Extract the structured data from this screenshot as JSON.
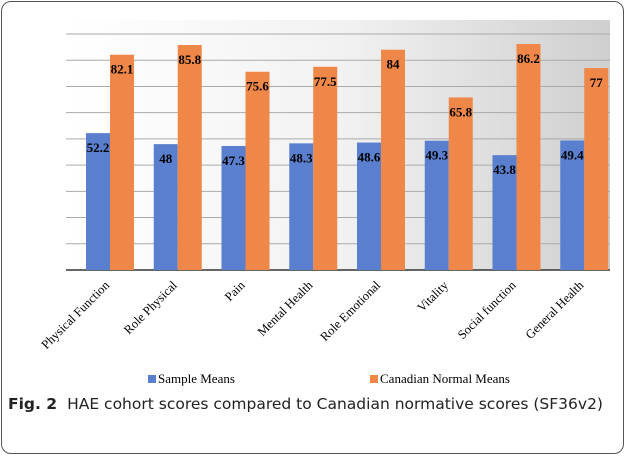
{
  "chart_data": {
    "type": "bar",
    "categories": [
      "Physical Function",
      "Role Physical",
      "Pain",
      "Mental Health",
      "Role Emotional",
      "Vitality",
      "Social function",
      "General Health"
    ],
    "series": [
      {
        "name": "Sample Means",
        "color": "#5b7fcf",
        "values": [
          52.2,
          48,
          47.3,
          48.3,
          48.6,
          49.3,
          43.8,
          49.4
        ]
      },
      {
        "name": "Canadian Normal Means",
        "color": "#ef8748",
        "values": [
          82.1,
          85.8,
          75.6,
          77.5,
          84,
          65.8,
          86.2,
          77
        ]
      }
    ],
    "ylim": [
      0,
      90
    ],
    "yticks": [
      0,
      10,
      20,
      30,
      40,
      50,
      60,
      70,
      80,
      90
    ],
    "grid": true
  },
  "caption": {
    "label": "Fig. 2",
    "text": "HAE cohort scores compared to Canadian normative scores (SF36v2)"
  }
}
